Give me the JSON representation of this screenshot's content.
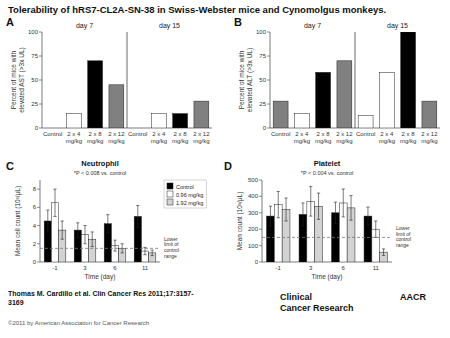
{
  "title": "Tolerability of hRS7-CL2A-SN-38 in Swiss-Webster mice and Cynomolgus monkeys.",
  "citation": "Thomas M. Cardillo et al. Clin Cancer Res 2011;17:3157-\n3169",
  "copyright": "©2011 by American Association for Cancer Research",
  "journal": "Clinical\nCancer Research",
  "publisher": "AACR",
  "chart_data": [
    {
      "type": "bar",
      "panel": "A",
      "ylabel": "Percent of mice with elevated AST (>3x UL)",
      "categories": [
        "Control",
        "2 x 4\nmg/kg",
        "2 x 8\nmg/kg",
        "2 x 12\nmg/kg",
        "Control",
        "2 x 4\nmg/kg",
        "2 x 8\nmg/kg",
        "2 x 12\nmg/kg"
      ],
      "values": [
        0,
        15,
        70,
        45,
        0,
        15,
        15,
        28
      ],
      "colors": [
        "white",
        "white",
        "black",
        "gray",
        "white",
        "white",
        "black",
        "gray"
      ],
      "annotations": [
        "day 7",
        "day 15"
      ],
      "ylim": [
        0,
        100
      ],
      "yticks": [
        0,
        25,
        50,
        75,
        100
      ]
    },
    {
      "type": "bar",
      "panel": "B",
      "ylabel": "Percent of mice with elevated ALT (>3x UL)",
      "categories": [
        "Control",
        "2 x 4\nmg/kg",
        "2 x 8\nmg/kg",
        "2 x 12\nmg/kg",
        "Control",
        "2 x 4\nmg/kg",
        "2 x 8\nmg/kg",
        "2 x 12\nmg/kg"
      ],
      "values": [
        28,
        15,
        58,
        70,
        13,
        58,
        100,
        28
      ],
      "colors": [
        "gray",
        "white",
        "black",
        "gray",
        "white",
        "white",
        "black",
        "gray"
      ],
      "annotations": [
        "day 7",
        "day 15"
      ],
      "ylim": [
        0,
        100
      ],
      "yticks": [
        0,
        25,
        50,
        75,
        100
      ]
    },
    {
      "type": "bar",
      "panel": "C",
      "title": "Neutrophil",
      "ylabel": "Mean cell count (10³/μL)",
      "xlabel": "Time (day)",
      "annotation": "*P < 0.008 vs. control",
      "categories": [
        "-1",
        "3",
        "6",
        "11"
      ],
      "series": [
        {
          "name": "Control",
          "color": "black",
          "values": [
            4.5,
            3.5,
            4.2,
            5.0
          ],
          "errors": [
            1.2,
            0.8,
            1.0,
            1.2
          ]
        },
        {
          "name": "0.96 mg/kg",
          "color": "white",
          "values": [
            6.5,
            3.0,
            1.8,
            1.2
          ],
          "errors": [
            1.5,
            1.0,
            0.6,
            0.4
          ]
        },
        {
          "name": "1.92 mg/kg",
          "color": "lightgray",
          "values": [
            3.5,
            2.5,
            1.5,
            1.0
          ],
          "errors": [
            1.0,
            0.8,
            0.5,
            0.3
          ]
        }
      ],
      "lower_limit": 1.5,
      "lower_limit_label": "Lower\nlimit of\ncontrol\nrange",
      "legend": "upper right",
      "ylim": [
        0,
        9
      ],
      "yticks": [
        0,
        2,
        4,
        6,
        8
      ]
    },
    {
      "type": "bar",
      "panel": "D",
      "title": "Platelet",
      "ylabel": "Mean count (10³/μL)",
      "xlabel": "Time (day)",
      "annotation": "*P < 0.004 vs. control",
      "categories": [
        "-1",
        "3",
        "6",
        "11"
      ],
      "series": [
        {
          "color": "black",
          "values": [
            280,
            290,
            300,
            280
          ],
          "errors": [
            60,
            70,
            65,
            55
          ]
        },
        {
          "color": "white",
          "values": [
            350,
            370,
            360,
            200
          ],
          "errors": [
            80,
            90,
            85,
            50
          ]
        },
        {
          "color": "lightgray",
          "values": [
            320,
            340,
            330,
            60
          ],
          "errors": [
            70,
            80,
            75,
            20
          ]
        }
      ],
      "lower_limit": 150,
      "lower_limit_label": "Lower\nlimit of\ncontrol\nrange",
      "ylim": [
        0,
        500
      ],
      "yticks": [
        0,
        100,
        200,
        300,
        400,
        500
      ]
    }
  ]
}
